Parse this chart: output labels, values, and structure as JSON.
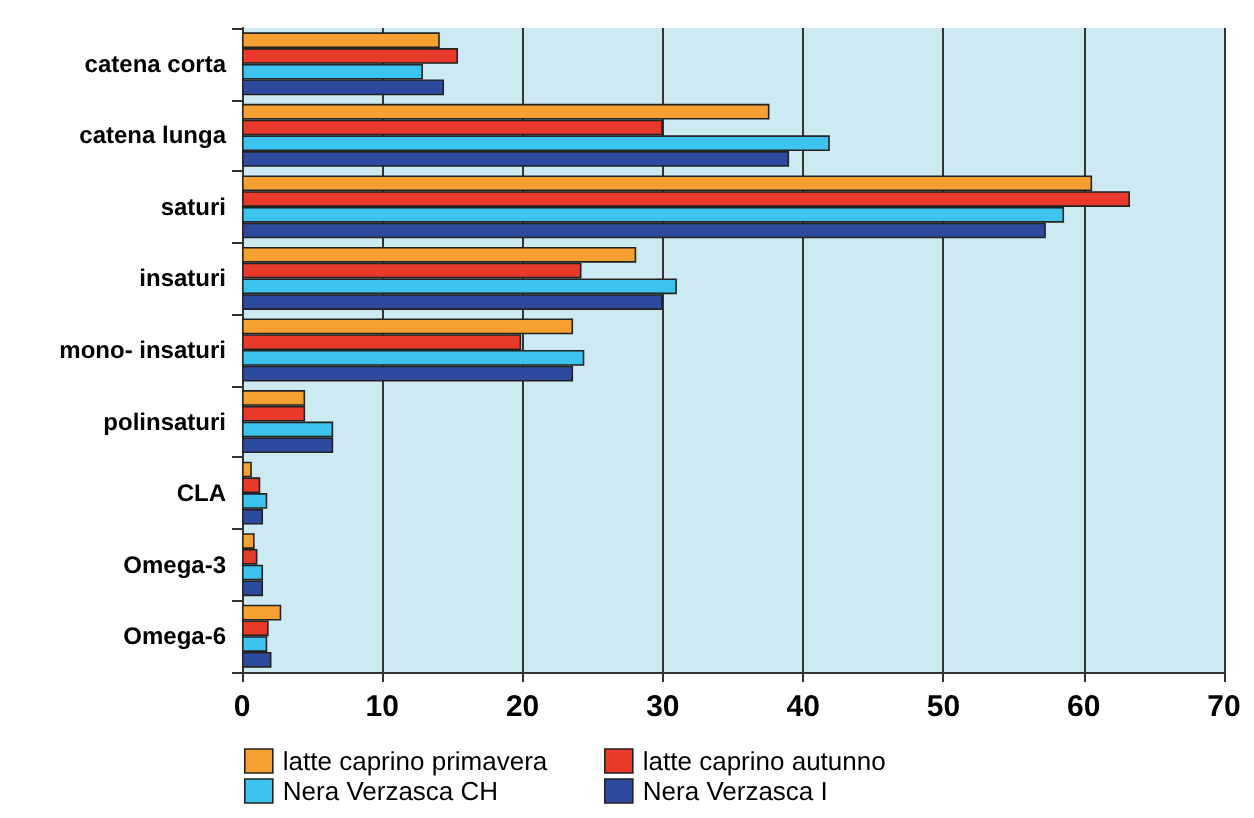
{
  "chart_data": {
    "type": "bar",
    "orientation": "horizontal",
    "categories": [
      "catena corta",
      "catena lunga",
      "saturi",
      "insaturi",
      "mono- insaturi",
      "polinsaturi",
      "CLA",
      "Omega-3",
      "Omega-6"
    ],
    "series": [
      {
        "name": "latte caprino primavera",
        "color": "#f5a030",
        "values": [
          14.1,
          37.6,
          60.6,
          28.1,
          23.6,
          4.5,
          0.7,
          0.9,
          2.8
        ]
      },
      {
        "name": "latte caprino autunno",
        "color": "#e8392a",
        "values": [
          15.4,
          30.0,
          63.3,
          24.2,
          19.9,
          4.5,
          1.3,
          1.1,
          1.9
        ]
      },
      {
        "name": "Nera Verzasca CH",
        "color": "#3cc3ee",
        "values": [
          12.9,
          41.9,
          58.6,
          31.0,
          24.4,
          6.5,
          1.8,
          1.5,
          1.8
        ]
      },
      {
        "name": "Nera Verzasca I",
        "color": "#2e4a9e",
        "values": [
          14.4,
          39.0,
          57.3,
          30.0,
          23.6,
          6.5,
          1.5,
          1.5,
          2.1
        ]
      }
    ],
    "xlim": [
      0,
      70
    ],
    "xticks": [
      0,
      10,
      20,
      30,
      40,
      50,
      60,
      70
    ],
    "grid": "x",
    "legend": "bottom"
  }
}
